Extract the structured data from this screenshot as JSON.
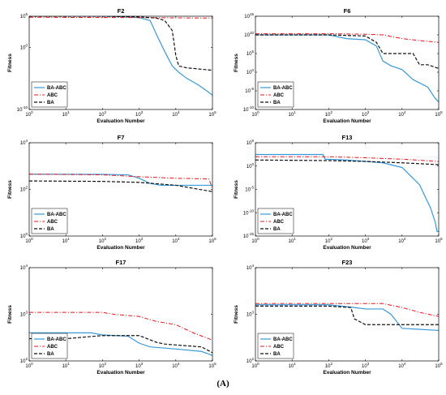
{
  "figure_label": "(A)",
  "colors": {
    "BA-ABC": "#3a9ad9",
    "ABC": "#e8141c",
    "BA": "#111111"
  },
  "chart_data": [
    {
      "type": "line",
      "title": "F2",
      "xlabel": "Evaluation Number",
      "ylabel": "Fitness",
      "xscale": "log",
      "yscale": "log",
      "xlim": [
        1,
        100000
      ],
      "ylim": [
        1e-10,
        100000
      ],
      "xticks": [
        1,
        10,
        100,
        1000,
        10000,
        100000
      ],
      "xtick_labels": [
        "10^0",
        "10^1",
        "10^2",
        "10^3",
        "10^4",
        "10^5"
      ],
      "yticks": [
        1e-10,
        1,
        100000
      ],
      "ytick_labels": [
        "10^-10",
        "10^0",
        "10^5"
      ],
      "legend_position": "bottom-left",
      "series": [
        {
          "name": "BA-ABC",
          "style": "solid",
          "x": [
            1,
            100,
            1000,
            2000,
            3000,
            5000,
            8000,
            12000,
            20000,
            40000,
            70000,
            100000
          ],
          "y": [
            130000,
            110000,
            60000,
            20000,
            100,
            0.2,
            0.001,
            0.0001,
            1e-05,
            1e-06,
            1e-07,
            2e-08
          ]
        },
        {
          "name": "ABC",
          "style": "dashdot",
          "x": [
            1,
            10,
            100,
            1000,
            10000,
            100000
          ],
          "y": [
            70000,
            65000,
            62000,
            60000,
            55000,
            50000
          ]
        },
        {
          "name": "BA",
          "style": "dashed",
          "x": [
            1,
            100,
            1000,
            3000,
            5000,
            8000,
            10000,
            12000,
            20000,
            50000,
            100000
          ],
          "y": [
            100000,
            100000,
            80000,
            50000,
            20000,
            500,
            0.05,
            0.001,
            0.0005,
            0.0003,
            0.0002
          ]
        }
      ]
    },
    {
      "type": "line",
      "title": "F6",
      "xlabel": "Evaluation Number",
      "ylabel": "Fitness",
      "xscale": "log",
      "yscale": "log",
      "xlim": [
        1,
        100000
      ],
      "ylim": [
        1e-10,
        1000000000000000.0
      ],
      "xticks": [
        1,
        10,
        100,
        1000,
        10000,
        100000
      ],
      "xtick_labels": [
        "10^0",
        "10^1",
        "10^2",
        "10^3",
        "10^4",
        "10^5"
      ],
      "yticks": [
        1e-10,
        1e-05,
        1,
        100000,
        10000000000.0,
        1000000000000000.0
      ],
      "ytick_labels": [
        "10^-10",
        "10^-5",
        "10^0",
        "10^5",
        "10^10",
        "10^15"
      ],
      "legend_position": "bottom-left",
      "series": [
        {
          "name": "BA-ABC",
          "style": "solid",
          "x": [
            1,
            100,
            300,
            1000,
            2000,
            3000,
            5000,
            10000,
            20000,
            50000,
            80000,
            100000
          ],
          "y": [
            10000000000.0,
            10000000000.0,
            1000000000.0,
            500000000.0,
            10000000.0,
            1000,
            50,
            5,
            0.01,
            0.0001,
            1e-07,
            1e-08
          ]
        },
        {
          "name": "ABC",
          "style": "dashdot",
          "x": [
            1,
            100,
            1000,
            3000,
            10000,
            30000,
            100000
          ],
          "y": [
            20000000000.0,
            20000000000.0,
            15000000000.0,
            10000000000.0,
            1000000000.0,
            300000000.0,
            100000000.0
          ]
        },
        {
          "name": "BA",
          "style": "dashed",
          "x": [
            1,
            100,
            1000,
            2000,
            3000,
            10000,
            20000,
            30000,
            50000,
            100000
          ],
          "y": [
            10000000000.0,
            10000000000.0,
            5000000000.0,
            100000000.0,
            100000,
            100000,
            100000,
            100,
            100,
            10
          ]
        }
      ]
    },
    {
      "type": "line",
      "title": "F7",
      "xlabel": "Evaluation Number",
      "ylabel": "Fitness",
      "xscale": "log",
      "yscale": "log",
      "xlim": [
        1,
        100000
      ],
      "ylim": [
        1,
        10000
      ],
      "xticks": [
        1,
        10,
        100,
        1000,
        10000,
        100000
      ],
      "xtick_labels": [
        "10^0",
        "10^1",
        "10^2",
        "10^3",
        "10^4",
        "10^5"
      ],
      "yticks": [
        1,
        100,
        10000
      ],
      "ytick_labels": [
        "10^0",
        "10^2",
        "10^4"
      ],
      "legend_position": "bottom-left",
      "series": [
        {
          "name": "BA-ABC",
          "style": "solid",
          "x": [
            1,
            100,
            500,
            1000,
            2000,
            4000,
            10000,
            100000
          ],
          "y": [
            450,
            440,
            420,
            300,
            180,
            150,
            150,
            150
          ]
        },
        {
          "name": "ABC",
          "style": "dashdot",
          "x": [
            1,
            100,
            1000,
            10000,
            80000,
            100000
          ],
          "y": [
            450,
            420,
            350,
            300,
            280,
            110
          ]
        },
        {
          "name": "BA",
          "style": "dashed",
          "x": [
            1,
            100,
            1000,
            10000,
            100000
          ],
          "y": [
            230,
            220,
            200,
            150,
            80
          ]
        }
      ]
    },
    {
      "type": "line",
      "title": "F13",
      "xlabel": "Evaluation Number",
      "ylabel": "Fitness",
      "xscale": "log",
      "yscale": "log",
      "xlim": [
        1,
        100000
      ],
      "ylim": [
        1e-15,
        100000
      ],
      "xticks": [
        1,
        10,
        100,
        1000,
        10000,
        100000
      ],
      "xtick_labels": [
        "10^0",
        "10^1",
        "10^2",
        "10^3",
        "10^4",
        "10^5"
      ],
      "yticks": [
        1e-15,
        1e-10,
        1e-05,
        1,
        100000
      ],
      "ytick_labels": [
        "10^-15",
        "10^-10",
        "10^-5",
        "10^0",
        "10^5"
      ],
      "legend_position": "bottom-left",
      "series": [
        {
          "name": "BA-ABC",
          "style": "solid",
          "x": [
            1,
            70,
            80,
            300,
            1000,
            3000,
            10000,
            30000,
            60000,
            80000,
            90000,
            100000
          ],
          "y": [
            300,
            300,
            30,
            20,
            10,
            5,
            0.5,
            0.0001,
            1e-09,
            1e-12,
            1e-14,
            1e-14
          ]
        },
        {
          "name": "ABC",
          "style": "dashdot",
          "x": [
            1,
            100,
            1000,
            10000,
            100000
          ],
          "y": [
            100,
            100,
            60,
            30,
            10
          ]
        },
        {
          "name": "BA",
          "style": "dashed",
          "x": [
            1,
            100,
            1000,
            10000,
            100000
          ],
          "y": [
            20,
            15,
            10,
            5,
            2
          ]
        }
      ]
    },
    {
      "type": "line",
      "title": "F17",
      "xlabel": "Evaluation Number",
      "ylabel": "Fitness",
      "xscale": "log",
      "yscale": "log",
      "xlim": [
        1,
        100000
      ],
      "ylim": [
        100,
        10000
      ],
      "xticks": [
        1,
        10,
        100,
        1000,
        10000,
        100000
      ],
      "xtick_labels": [
        "10^0",
        "10^1",
        "10^2",
        "10^3",
        "10^4",
        "10^5"
      ],
      "yticks": [
        100,
        1000,
        10000
      ],
      "ytick_labels": [
        "10^2",
        "10^3",
        "10^4"
      ],
      "legend_position": "bottom-left",
      "series": [
        {
          "name": "BA-ABC",
          "style": "solid",
          "x": [
            1,
            50,
            100,
            500,
            1000,
            2000,
            10000,
            50000,
            80000,
            100000
          ],
          "y": [
            400,
            400,
            360,
            340,
            240,
            200,
            180,
            160,
            140,
            130
          ]
        },
        {
          "name": "ABC",
          "style": "dashdot",
          "x": [
            1,
            100,
            200,
            1000,
            3000,
            10000,
            30000,
            100000
          ],
          "y": [
            1100,
            1100,
            1000,
            900,
            700,
            600,
            400,
            280
          ]
        },
        {
          "name": "BA",
          "style": "dashed",
          "x": [
            1,
            10,
            100,
            1000,
            3000,
            5000,
            10000,
            50000,
            100000
          ],
          "y": [
            300,
            300,
            350,
            350,
            250,
            230,
            220,
            200,
            150
          ]
        }
      ]
    },
    {
      "type": "line",
      "title": "F23",
      "xlabel": "Evaluation Number",
      "ylabel": "Fitness",
      "xscale": "log",
      "yscale": "log",
      "xlim": [
        1,
        100000
      ],
      "ylim": [
        100,
        10000
      ],
      "xticks": [
        1,
        10,
        100,
        1000,
        10000,
        100000
      ],
      "xtick_labels": [
        "10^0",
        "10^1",
        "10^2",
        "10^3",
        "10^4",
        "10^5"
      ],
      "yticks": [
        100,
        1000,
        10000
      ],
      "ytick_labels": [
        "10^2",
        "10^3",
        "10^4"
      ],
      "legend_position": "bottom-left",
      "series": [
        {
          "name": "BA-ABC",
          "style": "solid",
          "x": [
            1,
            100,
            500,
            1000,
            3000,
            5000,
            10000,
            100000
          ],
          "y": [
            1600,
            1600,
            1400,
            1300,
            1300,
            1000,
            500,
            450
          ]
        },
        {
          "name": "ABC",
          "style": "dashdot",
          "x": [
            1,
            100,
            3000,
            10000,
            30000,
            100000
          ],
          "y": [
            1700,
            1700,
            1700,
            1400,
            1100,
            900
          ]
        },
        {
          "name": "BA",
          "style": "dashed",
          "x": [
            1,
            100,
            400,
            500,
            1000,
            3000,
            100000
          ],
          "y": [
            1500,
            1500,
            1400,
            800,
            600,
            600,
            600
          ]
        }
      ]
    }
  ]
}
